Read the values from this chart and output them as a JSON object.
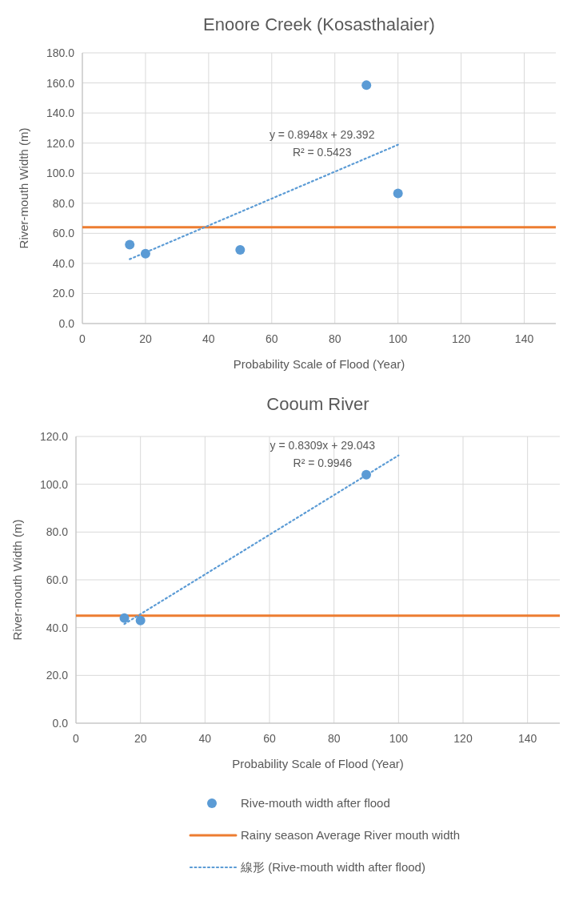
{
  "chart_data": [
    {
      "type": "scatter",
      "title": "Enoore Creek (Kosasthalaier)",
      "xlabel": "Probability Scale of Flood (Year)",
      "ylabel": "River-mouth Width (m)",
      "grid": true,
      "xlim": [
        0,
        150
      ],
      "xticks": [
        0,
        20,
        40,
        60,
        80,
        100,
        120,
        140
      ],
      "ylim": [
        0,
        180
      ],
      "yticks": [
        {
          "value": 0,
          "label": "0.0"
        },
        {
          "value": 20,
          "label": "20.0"
        },
        {
          "value": 40,
          "label": "40.0"
        },
        {
          "value": 60,
          "label": "60.0"
        },
        {
          "value": 80,
          "label": "80.0"
        },
        {
          "value": 100,
          "label": "100.0"
        },
        {
          "value": 120,
          "label": "120.0"
        },
        {
          "value": 140,
          "label": "140.0"
        },
        {
          "value": 160,
          "label": "160.0"
        },
        {
          "value": 180,
          "label": "180.0"
        }
      ],
      "series": [
        {
          "color": "#5b9bd5",
          "marker": "circle",
          "x": [
            15,
            20,
            50,
            90,
            100
          ],
          "values": [
            52.5,
            46.5,
            49,
            158.5,
            86.5
          ]
        },
        {
          "type": "line",
          "color": "#5b9bd5",
          "line_style": "dotted",
          "x": [
            15,
            100
          ],
          "values": [
            42.8,
            118.9
          ]
        }
      ],
      "ref_lines": [
        {
          "axis": "y",
          "value": 64,
          "color": "#ed7d31"
        }
      ],
      "annotations": [
        "y = 0.8948x + 29.392",
        "R² = 0.5423"
      ]
    },
    {
      "type": "scatter",
      "title": "Cooum River",
      "xlabel": "Probability Scale of Flood (Year)",
      "ylabel": "River-mouth Width (m)",
      "grid": true,
      "legend": "bottom",
      "xlim": [
        0,
        150
      ],
      "xticks": [
        0,
        20,
        40,
        60,
        80,
        100,
        120,
        140
      ],
      "ylim": [
        0,
        120
      ],
      "yticks": [
        {
          "value": 0,
          "label": "0.0"
        },
        {
          "value": 20,
          "label": "20.0"
        },
        {
          "value": 40,
          "label": "40.0"
        },
        {
          "value": 60,
          "label": "60.0"
        },
        {
          "value": 80,
          "label": "80.0"
        },
        {
          "value": 100,
          "label": "100.0"
        },
        {
          "value": 120,
          "label": "120.0"
        }
      ],
      "series": [
        {
          "name": "Rive-mouth width after flood",
          "color": "#5b9bd5",
          "marker": "circle",
          "x": [
            15,
            20,
            90
          ],
          "values": [
            44,
            43,
            104
          ]
        },
        {
          "type": "line",
          "name": "線形 (Rive-mouth width after flood)",
          "color": "#5b9bd5",
          "line_style": "dotted",
          "x": [
            15,
            100
          ],
          "values": [
            41.5,
            112.1
          ]
        }
      ],
      "ref_lines": [
        {
          "axis": "y",
          "value": 45,
          "color": "#ed7d31",
          "label": "Rainy season Average River mouth width"
        }
      ],
      "annotations": [
        "y = 0.8309x + 29.043",
        "R² = 0.9946"
      ]
    }
  ]
}
